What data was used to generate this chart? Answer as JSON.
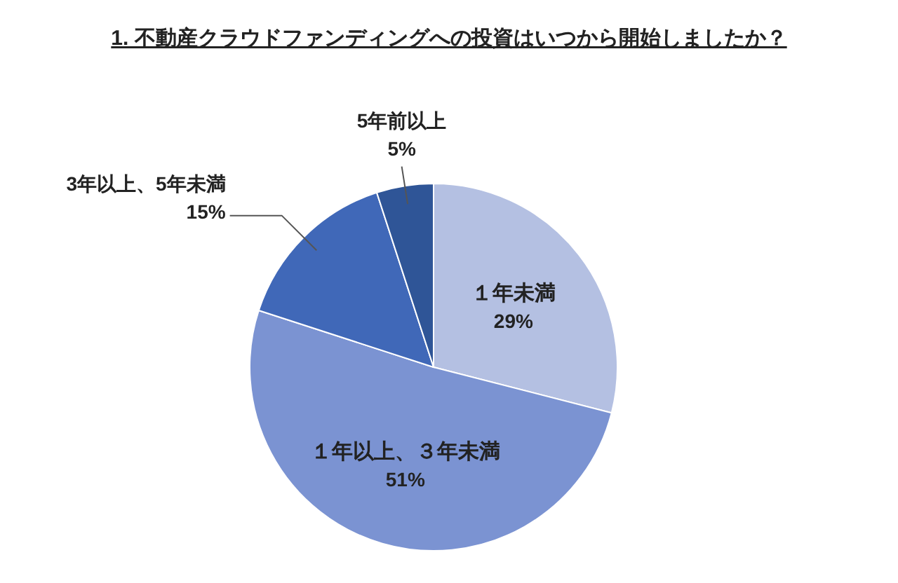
{
  "chart_data": {
    "type": "pie",
    "title": "1. 不動産クラウドファンディングへの投資はいつから開始しましたか？",
    "categories": [
      "１年未満",
      "１年以上、３年未満",
      "3年以上、5年未満",
      "5年前以上"
    ],
    "values": [
      29,
      51,
      15,
      5
    ],
    "colors": [
      "#b4c0e2",
      "#7b93d2",
      "#4068b8",
      "#2f5597"
    ],
    "value_labels": [
      "29%",
      "51%",
      "15%",
      "5%"
    ]
  }
}
